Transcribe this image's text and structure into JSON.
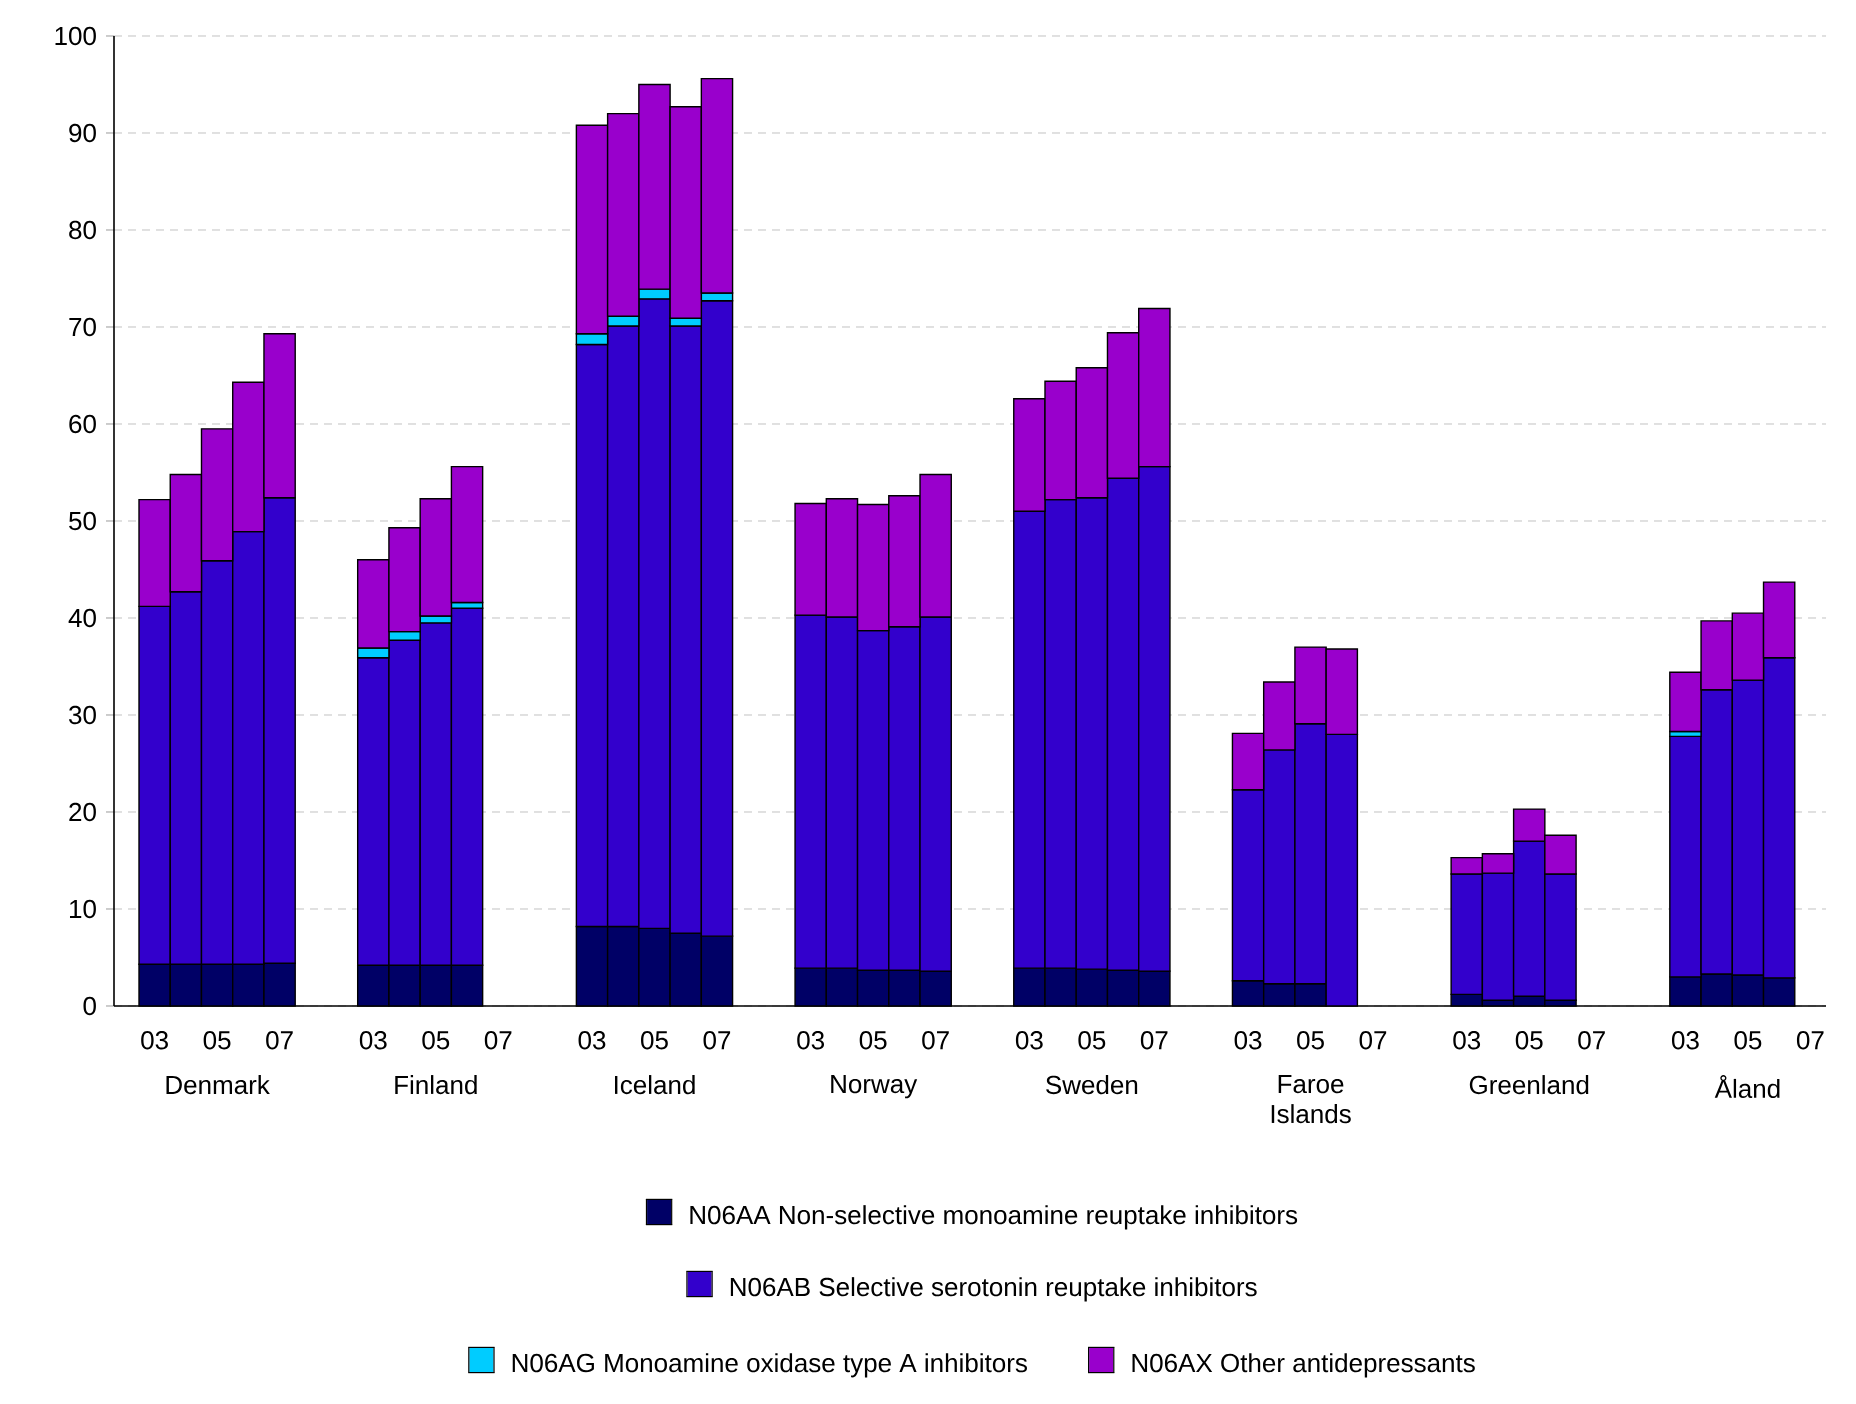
{
  "chart_data": {
    "type": "bar",
    "stacked": true,
    "categories": [
      "03",
      null,
      "05",
      null,
      "07",
      null,
      null,
      "03",
      null,
      "05",
      null,
      "07",
      null,
      null,
      "03",
      null,
      "05",
      null,
      "07",
      null,
      null,
      "03",
      null,
      "05",
      null,
      "07",
      null,
      null,
      "03",
      null,
      "05",
      null,
      "07",
      null,
      null,
      "03",
      null,
      "05",
      null,
      "07",
      null,
      null,
      "03",
      null,
      "05",
      null,
      "07",
      null,
      null,
      "03",
      null,
      "05",
      null,
      "07"
    ],
    "annotations": [
      "Denmark",
      "Finland",
      "Iceland",
      "Norway",
      "Sweden",
      "Faroe Islands",
      "Greenland",
      "Åland"
    ],
    "series": [
      {
        "name": "N06AA Non-selective monoamine reuptake inhibitors",
        "color": "#000066",
        "values": [
          4.3,
          4.3,
          4.3,
          4.3,
          4.4,
          null,
          null,
          4.2,
          4.2,
          4.2,
          4.2,
          null,
          null,
          null,
          8.2,
          8.2,
          8.0,
          7.5,
          7.2,
          null,
          null,
          3.9,
          3.9,
          3.7,
          3.7,
          3.6,
          null,
          null,
          3.9,
          3.9,
          3.8,
          3.7,
          3.6,
          null,
          null,
          2.6,
          2.3,
          2.3,
          null,
          null,
          null,
          null,
          1.2,
          0.6,
          1.0,
          0.6,
          null,
          null,
          null,
          3.0,
          3.3,
          3.2,
          2.9,
          null
        ]
      },
      {
        "name": "N06AB Selective serotonin reuptake inhibitors",
        "color": "#3300cc",
        "values": [
          36.9,
          38.4,
          41.6,
          44.6,
          48.0,
          null,
          null,
          31.7,
          33.5,
          35.3,
          36.8,
          null,
          null,
          null,
          60.0,
          61.9,
          64.9,
          62.6,
          65.5,
          null,
          null,
          36.4,
          36.2,
          35.0,
          35.4,
          36.5,
          null,
          null,
          47.1,
          48.3,
          48.6,
          50.7,
          52.0,
          null,
          null,
          19.7,
          24.1,
          26.8,
          28.0,
          null,
          null,
          null,
          12.4,
          13.1,
          16.0,
          13.0,
          null,
          null,
          null,
          24.8,
          29.3,
          30.4,
          33.0,
          null
        ]
      },
      {
        "name": "N06AG Monoamine oxidase type A inhibitors",
        "color": "#00ccff",
        "values": [
          null,
          null,
          null,
          null,
          null,
          null,
          null,
          1.0,
          0.9,
          0.7,
          0.6,
          null,
          null,
          null,
          1.1,
          1.0,
          1.0,
          0.8,
          0.8,
          null,
          null,
          null,
          null,
          null,
          null,
          null,
          null,
          null,
          null,
          null,
          null,
          null,
          null,
          null,
          null,
          null,
          null,
          null,
          null,
          null,
          null,
          null,
          null,
          null,
          null,
          null,
          null,
          null,
          null,
          0.5,
          null,
          null,
          null,
          null
        ]
      },
      {
        "name": "N06AX Other antidepressants",
        "color": "#9900cc",
        "values": [
          11.0,
          12.1,
          13.6,
          15.4,
          16.9,
          null,
          null,
          9.1,
          10.7,
          12.1,
          14.0,
          null,
          null,
          null,
          21.5,
          20.9,
          21.1,
          21.8,
          22.1,
          null,
          null,
          11.5,
          12.2,
          13.0,
          13.5,
          14.7,
          null,
          null,
          11.6,
          12.2,
          13.4,
          15.0,
          16.3,
          null,
          null,
          5.8,
          7.0,
          7.9,
          8.8,
          null,
          null,
          null,
          1.7,
          2.0,
          3.3,
          4.0,
          null,
          null,
          null,
          6.1,
          7.1,
          6.9,
          7.8,
          null
        ]
      }
    ],
    "ylim": [
      0,
      100
    ],
    "yticks": [
      0,
      10,
      20,
      30,
      40,
      50,
      60,
      70,
      80,
      90,
      100
    ],
    "grid": "y",
    "legend": "bottom"
  }
}
